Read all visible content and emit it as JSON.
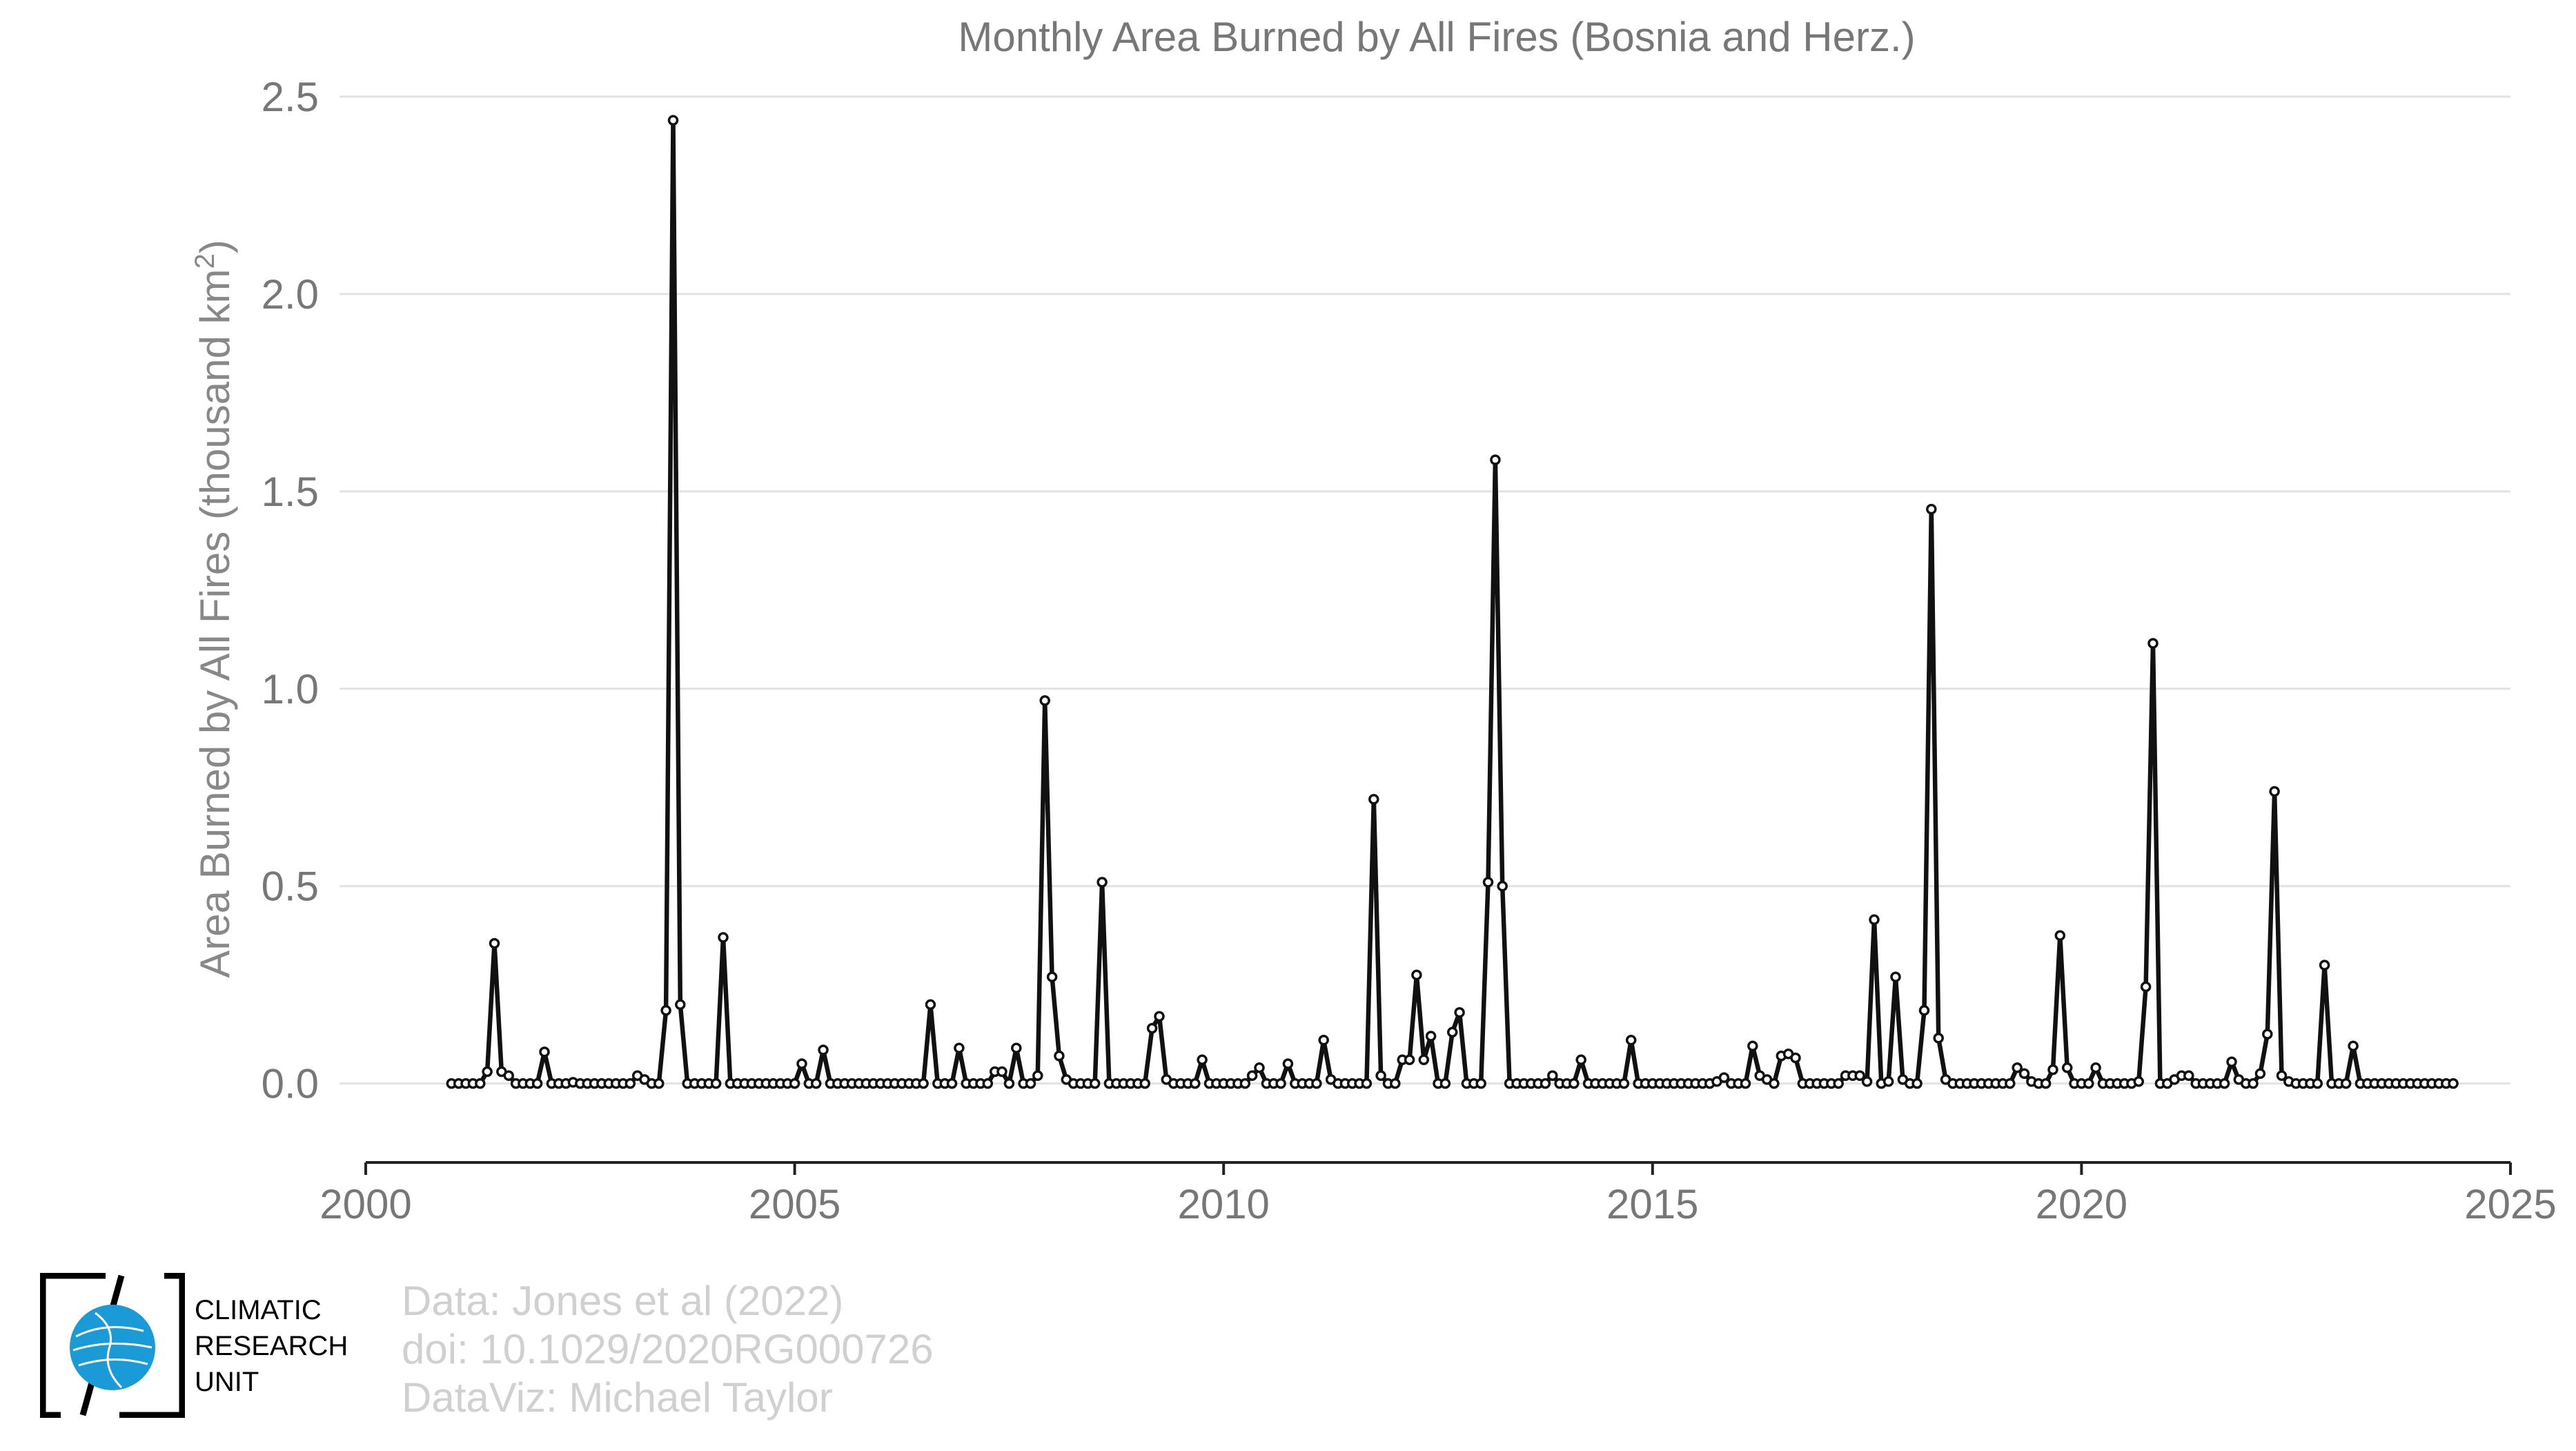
{
  "chart_data": {
    "type": "line",
    "title": "Monthly Area Burned by All Fires (Bosnia and Herz.)",
    "ylabel": "Area Burned by All Fires (thousand km²)",
    "ylabel_main": "Area Burned by All Fires (thousand km",
    "ylabel_sup": "2",
    "ylabel_end": ")",
    "xlabel": "",
    "xlim": [
      2000,
      2025
    ],
    "ylim": [
      -0.2,
      2.5
    ],
    "xticks": [
      "2000",
      "2005",
      "2010",
      "2015",
      "2020",
      "2025"
    ],
    "yticks": [
      "0.0",
      "0.5",
      "1.0",
      "1.5",
      "2.0",
      "2.5"
    ],
    "grid": "horizontal",
    "legend": "none",
    "series": [
      {
        "x_start": "2001-01",
        "x_step": "1 month",
        "values": [
          0.0,
          0.0,
          0.0,
          0.0,
          0.0,
          0.03,
          0.355,
          0.03,
          0.02,
          0.0,
          0.0,
          0.0,
          0.0,
          0.08,
          0.0,
          0.0,
          0.0,
          0.003,
          0.0,
          0.0,
          0.0,
          0.0,
          0.0,
          0.0,
          0.0,
          0.0,
          0.02,
          0.01,
          0.0,
          0.0,
          0.185,
          2.44,
          0.2,
          0.0,
          0.0,
          0.0,
          0.0,
          0.0,
          0.37,
          0.0,
          0.0,
          0.0,
          0.0,
          0.0,
          0.0,
          0.0,
          0.0,
          0.0,
          0.0,
          0.05,
          0.0,
          0.0,
          0.085,
          0.0,
          0.0,
          0.0,
          0.0,
          0.0,
          0.0,
          0.0,
          0.0,
          0.0,
          0.0,
          0.0,
          0.0,
          0.0,
          0.0,
          0.2,
          0.0,
          0.0,
          0.0,
          0.09,
          0.0,
          0.0,
          0.0,
          0.0,
          0.03,
          0.03,
          0.0,
          0.09,
          0.0,
          0.0,
          0.02,
          0.97,
          0.27,
          0.07,
          0.01,
          0.0,
          0.0,
          0.0,
          0.0,
          0.51,
          0.0,
          0.0,
          0.0,
          0.0,
          0.0,
          0.0,
          0.14,
          0.17,
          0.01,
          0.0,
          0.0,
          0.0,
          0.0,
          0.06,
          0.0,
          0.0,
          0.0,
          0.0,
          0.0,
          0.0,
          0.02,
          0.04,
          0.0,
          0.0,
          0.0,
          0.05,
          0.0,
          0.0,
          0.0,
          0.0,
          0.11,
          0.01,
          0.0,
          0.0,
          0.0,
          0.0,
          0.0,
          0.72,
          0.02,
          0.0,
          0.0,
          0.06,
          0.06,
          0.275,
          0.06,
          0.12,
          0.0,
          0.0,
          0.13,
          0.18,
          0.0,
          0.0,
          0.0,
          0.51,
          1.58,
          0.5,
          0.0,
          0.0,
          0.0,
          0.0,
          0.0,
          0.0,
          0.02,
          0.0,
          0.0,
          0.0,
          0.06,
          0.0,
          0.0,
          0.0,
          0.0,
          0.0,
          0.0,
          0.11,
          0.0,
          0.0,
          0.0,
          0.0,
          0.0,
          0.0,
          0.0,
          0.0,
          0.0,
          0.0,
          0.0,
          0.005,
          0.015,
          0.0,
          0.0,
          0.0,
          0.095,
          0.02,
          0.01,
          0.0,
          0.07,
          0.075,
          0.065,
          0.0,
          0.0,
          0.0,
          0.0,
          0.0,
          0.0,
          0.02,
          0.02,
          0.02,
          0.005,
          0.415,
          0.0,
          0.005,
          0.27,
          0.01,
          0.0,
          0.0,
          0.185,
          1.455,
          0.115,
          0.01,
          0.0,
          0.0,
          0.0,
          0.0,
          0.0,
          0.0,
          0.0,
          0.0,
          0.0,
          0.04,
          0.025,
          0.005,
          0.0,
          0.0,
          0.035,
          0.375,
          0.04,
          0.0,
          0.0,
          0.0,
          0.04,
          0.0,
          0.0,
          0.0,
          0.0,
          0.0,
          0.005,
          0.245,
          1.115,
          0.0,
          0.0,
          0.01,
          0.02,
          0.02,
          0.0,
          0.0,
          0.0,
          0.0,
          0.0,
          0.055,
          0.01,
          0.0,
          0.0,
          0.025,
          0.125,
          0.74,
          0.02,
          0.005,
          0.0,
          0.0,
          0.0,
          0.0,
          0.3,
          0.0,
          0.0,
          0.0,
          0.095,
          0.0,
          0.0,
          0.0,
          0.0,
          0.0,
          0.0,
          0.0,
          0.0,
          0.0,
          0.0,
          0.0,
          0.0,
          0.0,
          0.0
        ]
      }
    ]
  },
  "credits": {
    "line1": "Data: Jones et al (2022)",
    "line2": "doi: 10.1029/2020RG000726",
    "line3": "DataViz: Michael Taylor"
  },
  "logo": {
    "line1": "CLIMATIC",
    "line2": "RESEARCH",
    "line3": "UNIT",
    "globe_color": "#1a9ad6"
  }
}
